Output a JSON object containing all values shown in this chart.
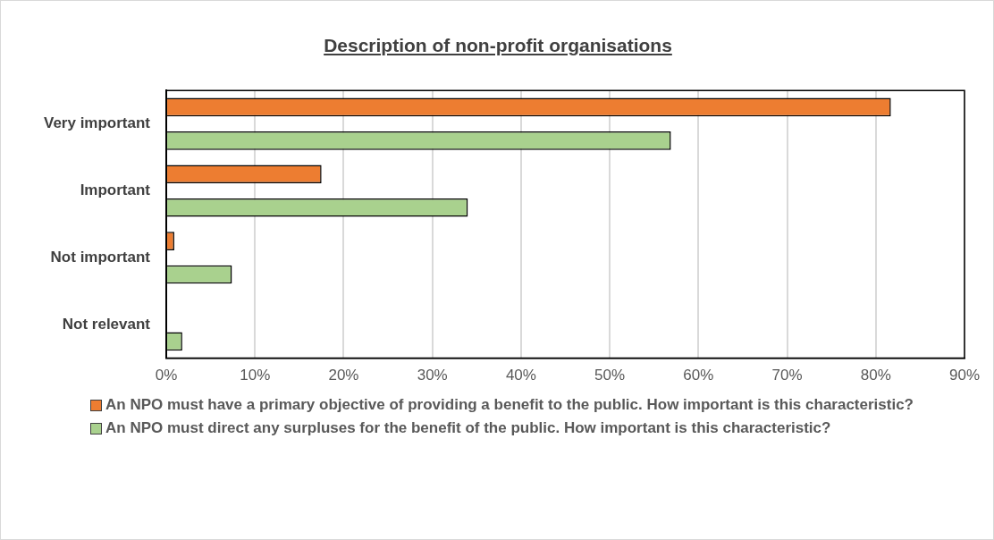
{
  "chart_data": {
    "type": "bar",
    "orientation": "horizontal",
    "title": "Description of non-profit organisations",
    "categories": [
      "Very important",
      "Important",
      "Not important",
      "Not relevant"
    ],
    "series": [
      {
        "name": "An NPO must have a primary objective of providing a benefit to the public. How important is this characteristic?",
        "color": "#ed7d31",
        "values": [
          81.7,
          17.5,
          0.9,
          0
        ]
      },
      {
        "name": "An NPO must direct any surpluses for the benefit of the public. How important is this characteristic?",
        "color": "#a9d18e",
        "values": [
          56.9,
          34,
          7.4,
          1.8
        ]
      }
    ],
    "xlim": [
      0,
      90
    ],
    "xticks": [
      {
        "value": 0,
        "label": "0%"
      },
      {
        "value": 10,
        "label": "10%"
      },
      {
        "value": 20,
        "label": "20%"
      },
      {
        "value": 30,
        "label": "30%"
      },
      {
        "value": 40,
        "label": "40%"
      },
      {
        "value": 50,
        "label": "50%"
      },
      {
        "value": 60,
        "label": "60%"
      },
      {
        "value": 70,
        "label": "70%"
      },
      {
        "value": 80,
        "label": "80%"
      },
      {
        "value": 90,
        "label": "90%"
      }
    ],
    "grid": "x",
    "legend": "bottom"
  }
}
